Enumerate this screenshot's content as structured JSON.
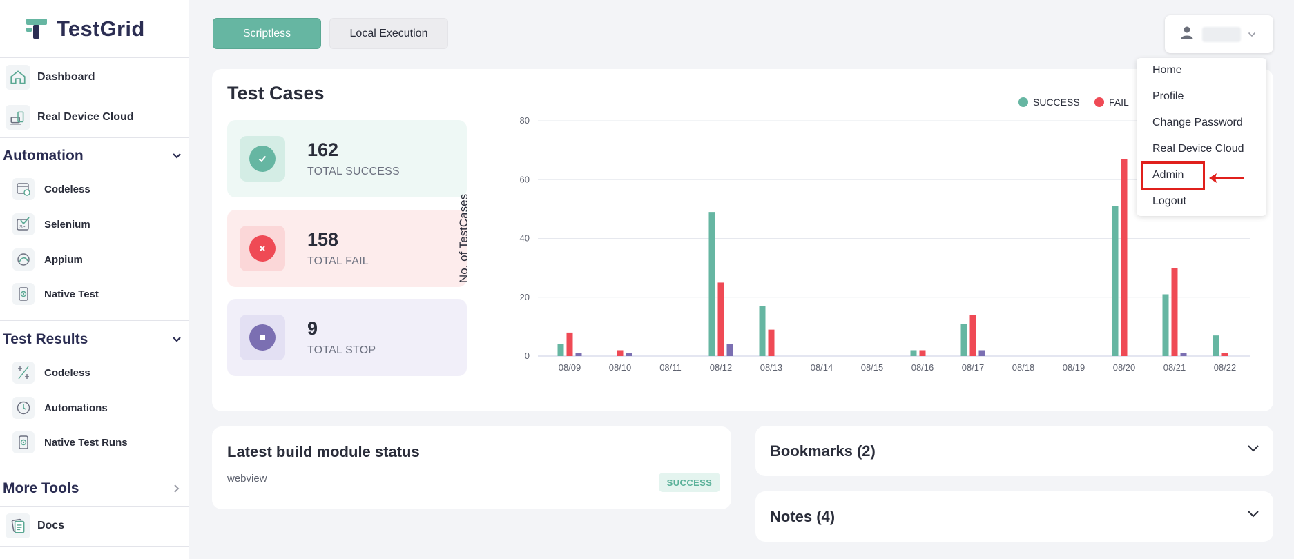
{
  "app": {
    "logo_text": "TestGrid",
    "accent_color": "#66b6a2"
  },
  "sidebar": {
    "top_items": [
      {
        "label": "Dashboard",
        "icon": "home-icon"
      },
      {
        "label": "Real Device Cloud",
        "icon": "devices-icon"
      }
    ],
    "automation": {
      "title": "Automation",
      "items": [
        {
          "label": "Codeless",
          "icon": "codeless-icon"
        },
        {
          "label": "Selenium",
          "icon": "selenium-icon"
        },
        {
          "label": "Appium",
          "icon": "appium-icon"
        },
        {
          "label": "Native Test",
          "icon": "native-test-icon"
        }
      ]
    },
    "test_results": {
      "title": "Test Results",
      "items": [
        {
          "label": "Codeless",
          "icon": "codeless-results-icon"
        },
        {
          "label": "Automations",
          "icon": "clock-icon"
        },
        {
          "label": "Native Test Runs",
          "icon": "native-runs-icon"
        }
      ]
    },
    "more_tools": {
      "title": "More Tools"
    },
    "bottom_items": [
      {
        "label": "Docs",
        "icon": "docs-icon"
      }
    ]
  },
  "header": {
    "tabs": [
      {
        "label": "Scriptless",
        "active": true
      },
      {
        "label": "Local Execution",
        "active": false
      }
    ],
    "user": {
      "icon": "user-icon"
    },
    "menu": [
      "Home",
      "Profile",
      "Change Password",
      "Real Device Cloud",
      "Admin",
      "Logout"
    ],
    "highlighted_item": "Admin"
  },
  "test_cases": {
    "title": "Test Cases",
    "stats": [
      {
        "value": "162",
        "caption": "TOTAL SUCCESS",
        "icon": "check-icon",
        "color": "#66b6a2"
      },
      {
        "value": "158",
        "caption": "TOTAL FAIL",
        "icon": "close-icon",
        "color": "#ef4a55"
      },
      {
        "value": "9",
        "caption": "TOTAL STOP",
        "icon": "stop-icon",
        "color": "#7b6fb2"
      }
    ]
  },
  "chart_data": {
    "type": "bar",
    "ylabel": "No. of TestCases",
    "ylim": [
      0,
      80
    ],
    "yticks": [
      0,
      20,
      40,
      60,
      80
    ],
    "grid": true,
    "legend_position": "top-right",
    "categories": [
      "08/09",
      "08/10",
      "08/11",
      "08/12",
      "08/13",
      "08/14",
      "08/15",
      "08/16",
      "08/17",
      "08/18",
      "08/19",
      "08/20",
      "08/21",
      "08/22"
    ],
    "series": [
      {
        "name": "SUCCESS",
        "color": "#66b6a2",
        "values": [
          4,
          0,
          0,
          49,
          17,
          0,
          0,
          2,
          11,
          0,
          0,
          51,
          21,
          7
        ]
      },
      {
        "name": "FAIL",
        "color": "#ef4a55",
        "values": [
          8,
          2,
          0,
          25,
          9,
          0,
          0,
          2,
          14,
          0,
          0,
          67,
          30,
          1
        ]
      },
      {
        "name": "",
        "color": "#7b6fb2",
        "values": [
          1,
          1,
          0,
          4,
          0,
          0,
          0,
          0,
          2,
          0,
          0,
          0,
          1,
          0
        ]
      }
    ]
  },
  "build_status": {
    "title": "Latest build module status",
    "item": "webview",
    "status": "SUCCESS"
  },
  "bookmarks": {
    "title": "Bookmarks (2)"
  },
  "notes": {
    "title": "Notes (4)"
  }
}
